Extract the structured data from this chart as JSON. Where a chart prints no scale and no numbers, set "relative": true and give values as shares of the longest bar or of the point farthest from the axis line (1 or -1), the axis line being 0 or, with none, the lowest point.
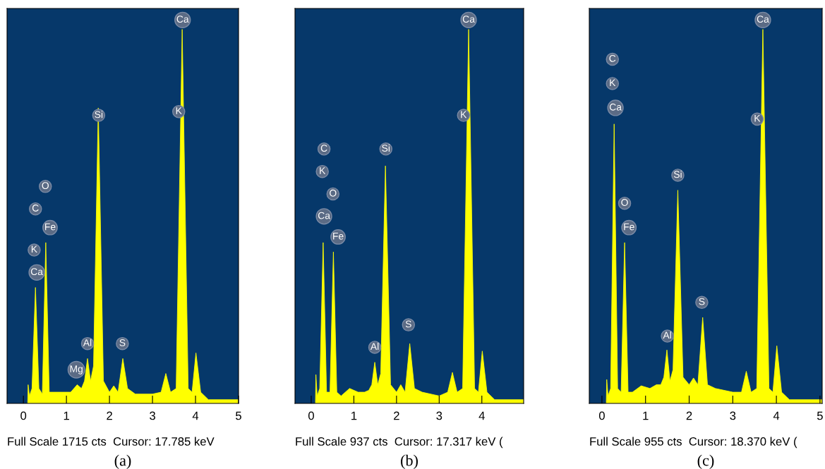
{
  "chart_data": [
    {
      "type": "area",
      "relative": true,
      "xlim": [
        -0.38,
        5.0
      ],
      "xticks": [
        0,
        1,
        2,
        3,
        4,
        {
          "value": 5,
          "label": "5"
        }
      ],
      "series": [
        {
          "color": "#ffff00",
          "x": [
            0.1,
            0.11,
            0.14,
            0.2,
            0.28,
            0.36,
            0.44,
            0.52,
            0.6,
            0.7,
            0.9,
            1.1,
            1.25,
            1.35,
            1.42,
            1.49,
            1.56,
            1.63,
            1.74,
            1.86,
            2.0,
            2.1,
            2.2,
            2.31,
            2.42,
            2.6,
            3.0,
            3.2,
            3.31,
            3.42,
            3.55,
            3.69,
            3.83,
            3.92,
            4.01,
            4.12,
            4.3,
            5.0
          ],
          "values": [
            0,
            0.05,
            0.02,
            0.04,
            0.31,
            0.04,
            0.025,
            0.43,
            0.03,
            0.03,
            0.03,
            0.03,
            0.05,
            0.04,
            0.06,
            0.12,
            0.06,
            0.1,
            0.79,
            0.06,
            0.03,
            0.047,
            0.03,
            0.12,
            0.04,
            0.025,
            0.025,
            0.03,
            0.08,
            0.03,
            0.04,
            1.0,
            0.04,
            0.03,
            0.135,
            0.03,
            0.01,
            0.01
          ]
        }
      ],
      "annotations": [
        "Full Scale 1715 cts  Cursor: 17.785 keV",
        "(a)",
        {
          "text": "Ca",
          "x": 0.31,
          "y": 0.35
        },
        {
          "text": "K",
          "x": 0.25,
          "y": 0.41
        },
        {
          "text": "C",
          "x": 0.28,
          "y": 0.52
        },
        {
          "text": "O",
          "x": 0.51,
          "y": 0.58
        },
        {
          "text": "Fe",
          "x": 0.62,
          "y": 0.47
        },
        {
          "text": "Mg",
          "x": 1.23,
          "y": 0.09
        },
        {
          "text": "Al",
          "x": 1.49,
          "y": 0.16
        },
        {
          "text": "S",
          "x": 2.3,
          "y": 0.16
        },
        {
          "text": "Si",
          "x": 1.75,
          "y": 0.77
        },
        {
          "text": "K",
          "x": 3.61,
          "y": 0.78
        },
        {
          "text": "Ca",
          "x": 3.7,
          "y": 1.025
        }
      ]
    },
    {
      "type": "area",
      "relative": true,
      "xlim": [
        -0.38,
        4.98
      ],
      "xticks": [
        0,
        1,
        2,
        3,
        4
      ],
      "series": [
        {
          "color": "#ffff00",
          "x": [
            0.1,
            0.11,
            0.14,
            0.2,
            0.28,
            0.36,
            0.44,
            0.52,
            0.6,
            0.7,
            0.9,
            1.1,
            1.25,
            1.35,
            1.42,
            1.49,
            1.56,
            1.63,
            1.74,
            1.86,
            2.0,
            2.1,
            2.2,
            2.31,
            2.42,
            2.6,
            3.0,
            3.2,
            3.31,
            3.42,
            3.55,
            3.69,
            3.83,
            3.92,
            4.01,
            4.12,
            4.3,
            4.98
          ],
          "values": [
            0,
            0.077,
            0.02,
            0.04,
            0.43,
            0.03,
            0.03,
            0.405,
            0.03,
            0.02,
            0.04,
            0.03,
            0.03,
            0.035,
            0.05,
            0.11,
            0.05,
            0.08,
            0.635,
            0.05,
            0.03,
            0.05,
            0.03,
            0.16,
            0.04,
            0.03,
            0.02,
            0.03,
            0.083,
            0.03,
            0.04,
            1.0,
            0.04,
            0.03,
            0.14,
            0.03,
            0.01,
            0.01
          ]
        }
      ],
      "annotations": [
        "Full Scale 937 cts  Cursor: 17.317 keV (",
        "(b)",
        {
          "text": "C",
          "x": 0.3,
          "y": 0.68
        },
        {
          "text": "K",
          "x": 0.26,
          "y": 0.62
        },
        {
          "text": "O",
          "x": 0.51,
          "y": 0.56
        },
        {
          "text": "Ca",
          "x": 0.3,
          "y": 0.5
        },
        {
          "text": "Fe",
          "x": 0.63,
          "y": 0.445
        },
        {
          "text": "Al",
          "x": 1.49,
          "y": 0.15
        },
        {
          "text": "Si",
          "x": 1.75,
          "y": 0.68
        },
        {
          "text": "S",
          "x": 2.28,
          "y": 0.21
        },
        {
          "text": "K",
          "x": 3.57,
          "y": 0.77
        },
        {
          "text": "Ca",
          "x": 3.69,
          "y": 1.025
        }
      ]
    },
    {
      "type": "area",
      "relative": true,
      "xlim": [
        -0.29,
        5.05
      ],
      "xticks": [
        0,
        1,
        2,
        3,
        4,
        5
      ],
      "series": [
        {
          "color": "#ffff00",
          "x": [
            0.1,
            0.11,
            0.14,
            0.2,
            0.28,
            0.36,
            0.44,
            0.52,
            0.6,
            0.7,
            0.9,
            1.1,
            1.25,
            1.35,
            1.42,
            1.49,
            1.56,
            1.63,
            1.74,
            1.86,
            2.0,
            2.1,
            2.2,
            2.31,
            2.42,
            2.6,
            3.0,
            3.2,
            3.31,
            3.42,
            3.55,
            3.69,
            3.83,
            3.92,
            4.01,
            4.12,
            4.3,
            5.05
          ],
          "values": [
            0,
            0.064,
            0.02,
            0.04,
            0.747,
            0.04,
            0.03,
            0.43,
            0.03,
            0.03,
            0.047,
            0.04,
            0.05,
            0.05,
            0.07,
            0.143,
            0.06,
            0.09,
            0.57,
            0.07,
            0.05,
            0.068,
            0.05,
            0.23,
            0.05,
            0.04,
            0.03,
            0.03,
            0.086,
            0.03,
            0.04,
            1.0,
            0.04,
            0.03,
            0.154,
            0.03,
            0.01,
            0.01
          ]
        }
      ],
      "annotations": [
        "Full Scale 955 cts  Cursor: 18.370 keV (",
        "(c)",
        {
          "text": "C",
          "x": 0.24,
          "y": 0.92
        },
        {
          "text": "K",
          "x": 0.24,
          "y": 0.855
        },
        {
          "text": "Ca",
          "x": 0.31,
          "y": 0.79
        },
        {
          "text": "O",
          "x": 0.52,
          "y": 0.535
        },
        {
          "text": "Fe",
          "x": 0.62,
          "y": 0.47
        },
        {
          "text": "Al",
          "x": 1.5,
          "y": 0.18
        },
        {
          "text": "Si",
          "x": 1.74,
          "y": 0.61
        },
        {
          "text": "S",
          "x": 2.29,
          "y": 0.27
        },
        {
          "text": "K",
          "x": 3.56,
          "y": 0.76
        },
        {
          "text": "Ca",
          "x": 3.69,
          "y": 1.025
        }
      ]
    }
  ]
}
